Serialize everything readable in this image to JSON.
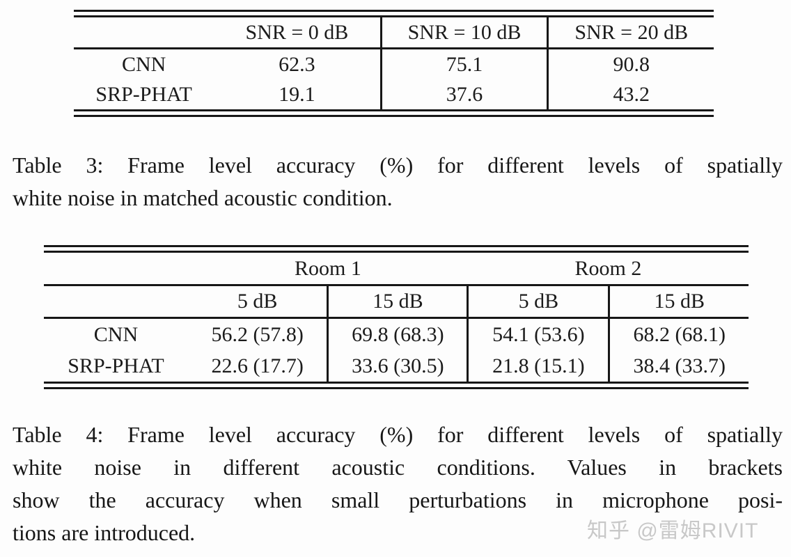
{
  "page": {
    "background_color": "#fdfdfd",
    "text_color": "#1b1b1b",
    "rule_color": "#171717"
  },
  "chart_data": [
    {
      "type": "table",
      "title": "Table 3: Frame level accuracy (%) for different levels of spatially white noise in matched acoustic condition.",
      "columns": [
        "",
        "SNR = 0 dB",
        "SNR = 10 dB",
        "SNR = 20 dB"
      ],
      "rows": [
        {
          "label": "CNN",
          "values": [
            62.3,
            75.1,
            90.8
          ]
        },
        {
          "label": "SRP-PHAT",
          "values": [
            19.1,
            37.6,
            43.2
          ]
        }
      ]
    },
    {
      "type": "table",
      "title": "Table 4: Frame level accuracy (%) for different levels of spatially white noise in different acoustic conditions. Values in brackets show the accuracy when small perturbations in microphone positions are introduced.",
      "column_groups": [
        "Room 1",
        "Room 2"
      ],
      "columns": [
        "",
        "5 dB",
        "15 dB",
        "5 dB",
        "15 dB"
      ],
      "rows": [
        {
          "label": "CNN",
          "values": [
            "56.2 (57.8)",
            "69.8 (68.3)",
            "54.1 (53.6)",
            "68.2 (68.1)"
          ]
        },
        {
          "label": "SRP-PHAT",
          "values": [
            "22.6 (17.7)",
            "33.6 (30.5)",
            "21.8 (15.1)",
            "38.4 (33.7)"
          ]
        }
      ]
    }
  ],
  "table3": {
    "columns": [
      "",
      "SNR = 0 dB",
      "SNR = 10 dB",
      "SNR = 20 dB"
    ],
    "rows": [
      {
        "label": "CNN",
        "values": [
          "62.3",
          "75.1",
          "90.8"
        ]
      },
      {
        "label": "SRP-PHAT",
        "values": [
          "19.1",
          "37.6",
          "43.2"
        ]
      }
    ]
  },
  "caption3": {
    "lines": [
      "Table 3: Frame level accuracy (%) for different levels of spatially",
      "white noise in matched acoustic condition."
    ]
  },
  "table4": {
    "groups": [
      "Room 1",
      "Room 2"
    ],
    "sub_headers": [
      "5 dB",
      "15 dB",
      "5 dB",
      "15 dB"
    ],
    "rows": [
      {
        "label": "CNN",
        "values": [
          "56.2 (57.8)",
          "69.8 (68.3)",
          "54.1 (53.6)",
          "68.2 (68.1)"
        ]
      },
      {
        "label": "SRP-PHAT",
        "values": [
          "22.6 (17.7)",
          "33.6 (30.5)",
          "21.8 (15.1)",
          "38.4 (33.7)"
        ]
      }
    ]
  },
  "caption4": {
    "lines": [
      "Table 4: Frame level accuracy (%) for different levels of spatially",
      "white noise in different acoustic conditions.  Values in brackets",
      "show the accuracy when small perturbations in microphone posi-",
      "tions are introduced."
    ]
  },
  "watermark": {
    "text": "知乎 @雷姆RIVIT",
    "color": "#c8c8c8"
  }
}
